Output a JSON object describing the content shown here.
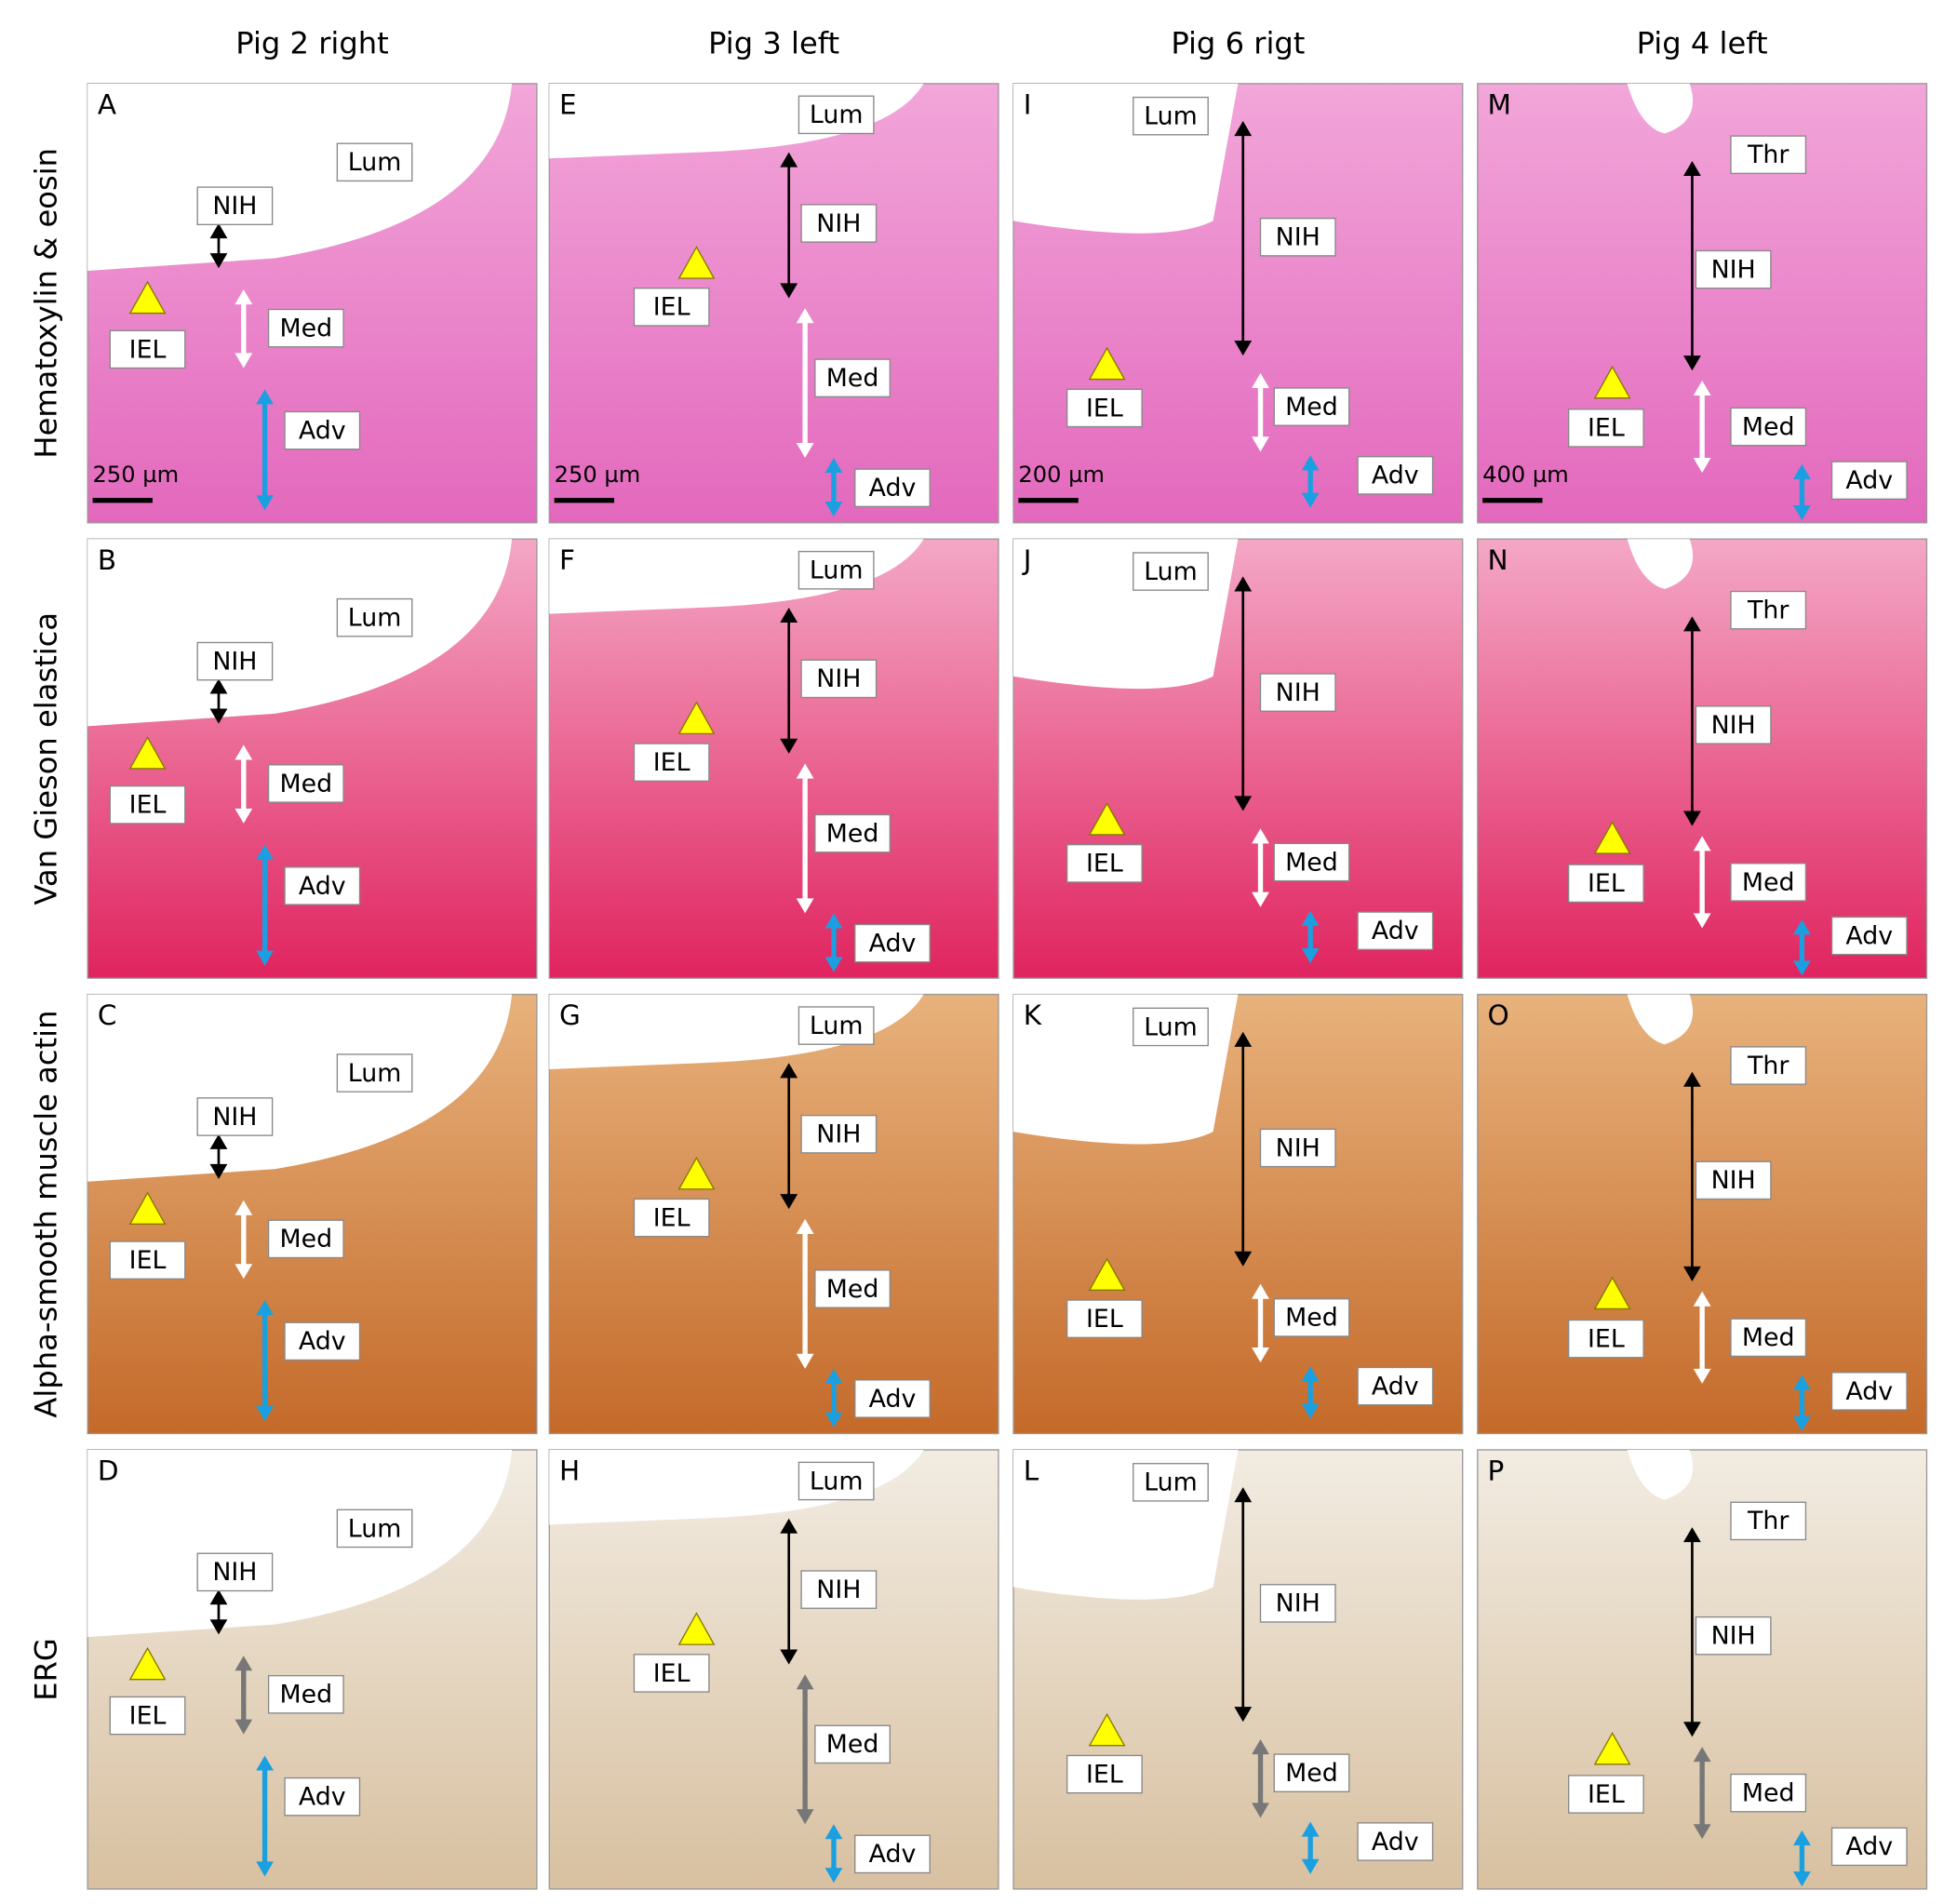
{
  "columns": [
    "Pig 2 right",
    "Pig 3 left",
    "Pig 6 rigt",
    "Pig 4 left"
  ],
  "rows": [
    "Hematoxylin & eosin",
    "Van Gieson elastica",
    "Alpha-smooth muscle actin",
    "ERG"
  ],
  "panels": [
    {
      "letter": "A",
      "labels": [
        "Lum",
        "NIH",
        "IEL",
        "Med",
        "Adv"
      ],
      "scale": "250 µm"
    },
    {
      "letter": "B",
      "labels": [
        "Lum",
        "NIH",
        "IEL",
        "Med",
        "Adv"
      ]
    },
    {
      "letter": "C",
      "labels": [
        "Lum",
        "NIH",
        "IEL",
        "Med",
        "Adv"
      ]
    },
    {
      "letter": "D",
      "labels": [
        "Lum",
        "NIH",
        "IEL",
        "Med",
        "Adv"
      ]
    },
    {
      "letter": "E",
      "labels": [
        "Lum",
        "NIH",
        "IEL",
        "Med",
        "Adv"
      ],
      "scale": "250 µm"
    },
    {
      "letter": "F",
      "labels": [
        "Lum",
        "NIH",
        "IEL",
        "Med",
        "Adv"
      ]
    },
    {
      "letter": "G",
      "labels": [
        "Lum",
        "NIH",
        "IEL",
        "Med",
        "Adv"
      ]
    },
    {
      "letter": "H",
      "labels": [
        "Lum",
        "NIH",
        "IEL",
        "Med",
        "Adv"
      ]
    },
    {
      "letter": "I",
      "labels": [
        "Lum",
        "NIH",
        "IEL",
        "Med",
        "Adv"
      ],
      "scale": "200 µm"
    },
    {
      "letter": "J",
      "labels": [
        "Lum",
        "NIH",
        "IEL",
        "Med",
        "Adv"
      ]
    },
    {
      "letter": "K",
      "labels": [
        "Lum",
        "NIH",
        "IEL",
        "Med",
        "Adv"
      ]
    },
    {
      "letter": "L",
      "labels": [
        "Lum",
        "NIH",
        "IEL",
        "Med",
        "Adv"
      ]
    },
    {
      "letter": "M",
      "labels": [
        "Thr",
        "NIH",
        "IEL",
        "Med",
        "Adv"
      ],
      "scale": "400 µm"
    },
    {
      "letter": "N",
      "labels": [
        "Thr",
        "NIH",
        "IEL",
        "Med",
        "Adv"
      ]
    },
    {
      "letter": "O",
      "labels": [
        "Thr",
        "NIH",
        "IEL",
        "Med",
        "Adv"
      ]
    },
    {
      "letter": "P",
      "labels": [
        "Thr",
        "NIH",
        "IEL",
        "Med",
        "Adv"
      ]
    }
  ]
}
